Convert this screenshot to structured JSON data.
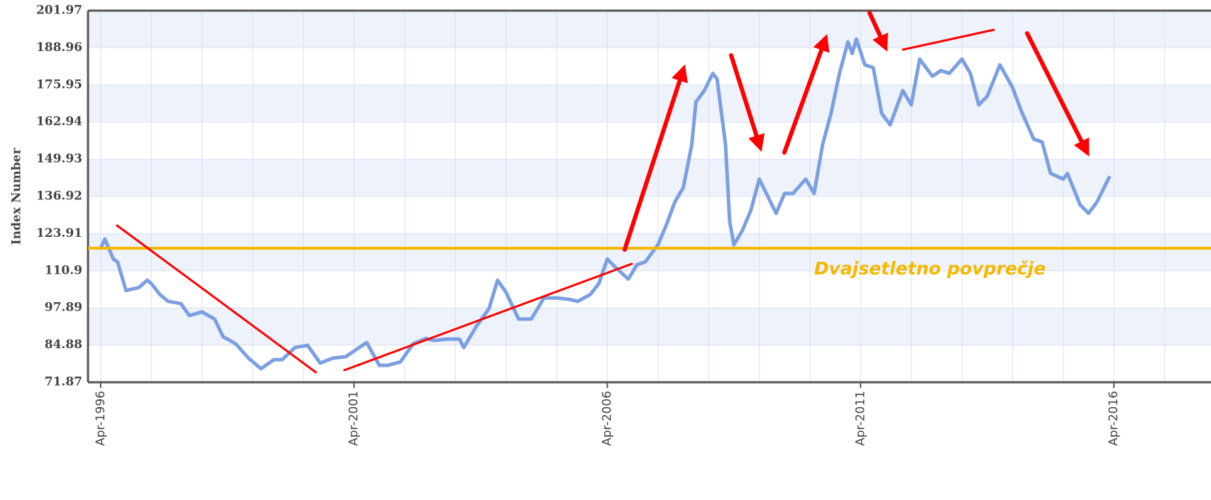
{
  "chart_data": {
    "type": "line",
    "y_label": "Index Number",
    "annotation": "Dvajsetletno povprečje",
    "average": 118.8,
    "average_color": "#f5b800",
    "x": [
      "1996-04",
      "1996-05",
      "1996-07",
      "1996-08",
      "1996-10",
      "1997-01",
      "1997-03",
      "1997-04",
      "1997-06",
      "1997-08",
      "1997-11",
      "1998-01",
      "1998-04",
      "1998-07",
      "1998-09",
      "1998-10",
      "1998-12",
      "1999-03",
      "1999-06",
      "1999-09",
      "1999-11",
      "2000-02",
      "2000-05",
      "2000-08",
      "2000-11",
      "2001-02",
      "2001-04",
      "2001-07",
      "2001-10",
      "2001-12",
      "2002-03",
      "2002-06",
      "2002-09",
      "2002-11",
      "2003-02",
      "2003-05",
      "2003-06",
      "2003-09",
      "2003-12",
      "2004-02",
      "2004-04",
      "2004-07",
      "2004-10",
      "2005-01",
      "2005-04",
      "2005-07",
      "2005-09",
      "2005-12",
      "2006-02",
      "2006-04",
      "2006-06",
      "2006-09",
      "2006-11",
      "2007-01",
      "2007-04",
      "2007-06",
      "2007-08",
      "2007-10",
      "2007-12",
      "2008-01",
      "2008-03",
      "2008-05",
      "2008-06",
      "2008-08",
      "2008-09",
      "2008-10",
      "2008-12",
      "2009-02",
      "2009-04",
      "2009-06",
      "2009-08",
      "2009-10",
      "2009-12",
      "2010-03",
      "2010-05",
      "2010-07",
      "2010-09",
      "2010-11",
      "2011-01",
      "2011-02",
      "2011-03",
      "2011-05",
      "2011-07",
      "2011-09",
      "2011-11",
      "2012-02",
      "2012-04",
      "2012-06",
      "2012-09",
      "2012-11",
      "2013-01",
      "2013-04",
      "2013-06",
      "2013-08",
      "2013-10",
      "2014-01",
      "2014-04",
      "2014-06",
      "2014-09",
      "2014-11",
      "2015-01",
      "2015-04",
      "2015-05",
      "2015-08",
      "2015-10",
      "2015-12",
      "2016-03"
    ],
    "series": [
      {
        "name": "Index Number",
        "color": "#7b9fe0",
        "values": [
          118.8,
          122,
          115,
          114,
          104,
          105,
          107.6,
          106.4,
          102.6,
          100.2,
          99.4,
          95.2,
          96.5,
          94,
          87.8,
          87,
          85.3,
          80.3,
          76.6,
          79.8,
          79.8,
          84,
          84.8,
          78.6,
          80.3,
          80.8,
          82.8,
          85.8,
          77.8,
          77.8,
          79,
          85.3,
          87.2,
          86.5,
          87,
          87,
          84,
          91.5,
          97.7,
          107.6,
          103.4,
          94,
          94,
          101.4,
          101.4,
          100.9,
          100.2,
          102.6,
          106.4,
          115,
          112,
          108,
          113,
          114,
          120,
          127,
          135,
          140,
          155,
          170,
          174,
          180,
          178,
          155,
          128,
          120,
          125,
          132,
          143,
          137,
          131,
          138,
          138,
          143,
          138,
          155,
          166,
          180,
          191,
          187,
          192,
          183,
          182,
          166,
          162,
          174,
          169,
          185,
          179,
          181,
          180,
          185,
          180,
          169,
          172,
          183,
          175,
          167,
          157,
          156,
          145,
          143,
          145,
          134,
          131,
          135,
          144
        ]
      }
    ],
    "xlim": [
      "1996-01",
      "2018-03"
    ],
    "xticks": [
      {
        "value": "1996-04",
        "label": "Apr-1996"
      },
      {
        "value": "2001-04",
        "label": "Apr-2001"
      },
      {
        "value": "2006-04",
        "label": "Apr-2006"
      },
      {
        "value": "2011-04",
        "label": "Apr-2011"
      },
      {
        "value": "2016-04",
        "label": "Apr-2016"
      }
    ],
    "xgrid_ticks": [
      "1997-04",
      "1998-04",
      "1999-04",
      "2000-04",
      "2002-04",
      "2003-04",
      "2004-04",
      "2005-04",
      "2007-04",
      "2008-04",
      "2009-04",
      "2010-04",
      "2012-04",
      "2013-04",
      "2014-04",
      "2015-04",
      "2017-04"
    ],
    "ylim": [
      71.87,
      201.97
    ],
    "yticks": [
      71.87,
      84.88,
      97.89,
      110.9,
      123.91,
      136.92,
      149.93,
      162.94,
      175.95,
      188.96,
      201.97
    ],
    "grid": true
  }
}
